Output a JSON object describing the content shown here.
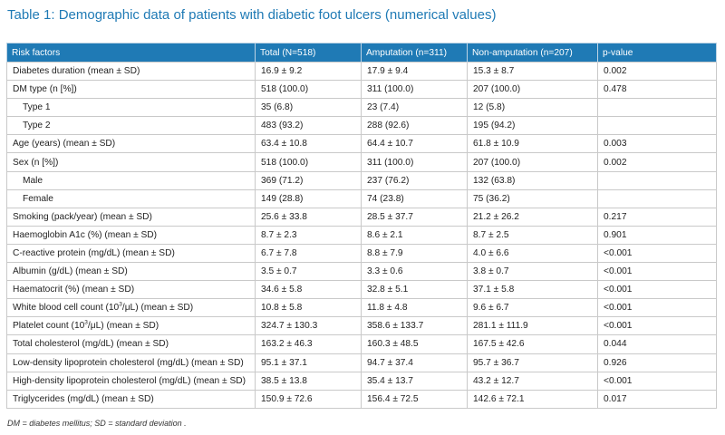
{
  "title": "Table 1: Demographic data of patients with diabetic foot ulcers (numerical values)",
  "columns": [
    "Risk factors",
    "Total (N=518)",
    "Amputation (n=311)",
    "Non-amputation (n=207)",
    "p-value"
  ],
  "rows": [
    {
      "label": "Diabetes duration (mean ± SD)",
      "indent": false,
      "total": "16.9 ± 9.2",
      "amputation": "17.9 ± 9.4",
      "non_amputation": "15.3 ± 8.7",
      "p_value": "0.002"
    },
    {
      "label": "DM type (n [%])",
      "indent": false,
      "total": "518 (100.0)",
      "amputation": "311 (100.0)",
      "non_amputation": "207 (100.0)",
      "p_value": "0.478"
    },
    {
      "label": "Type 1",
      "indent": true,
      "total": "35 (6.8)",
      "amputation": "23 (7.4)",
      "non_amputation": "12 (5.8)",
      "p_value": ""
    },
    {
      "label": "Type 2",
      "indent": true,
      "total": "483 (93.2)",
      "amputation": "288 (92.6)",
      "non_amputation": "195 (94.2)",
      "p_value": ""
    },
    {
      "label": "Age (years) (mean ± SD)",
      "indent": false,
      "total": "63.4 ± 10.8",
      "amputation": "64.4 ± 10.7",
      "non_amputation": "61.8 ± 10.9",
      "p_value": "0.003"
    },
    {
      "label": "Sex (n [%])",
      "indent": false,
      "total": "518 (100.0)",
      "amputation": "311 (100.0)",
      "non_amputation": "207 (100.0)",
      "p_value": "0.002"
    },
    {
      "label": "Male",
      "indent": true,
      "total": "369 (71.2)",
      "amputation": "237 (76.2)",
      "non_amputation": "132 (63.8)",
      "p_value": ""
    },
    {
      "label": "Female",
      "indent": true,
      "total": "149 (28.8)",
      "amputation": "74 (23.8)",
      "non_amputation": "75 (36.2)",
      "p_value": ""
    },
    {
      "label": "Smoking (pack/year) (mean ± SD)",
      "indent": false,
      "total": "25.6 ± 33.8",
      "amputation": "28.5 ± 37.7",
      "non_amputation": "21.2 ± 26.2",
      "p_value": "0.217"
    },
    {
      "label": "Haemoglobin A1c (%) (mean ± SD)",
      "indent": false,
      "total": "8.7 ± 2.3",
      "amputation": "8.6 ± 2.1",
      "non_amputation": "8.7 ± 2.5",
      "p_value": "0.901"
    },
    {
      "label": "C-reactive protein (mg/dL) (mean ± SD)",
      "indent": false,
      "total": "6.7 ± 7.8",
      "amputation": "8.8 ± 7.9",
      "non_amputation": "4.0 ± 6.6",
      "p_value": "<0.001"
    },
    {
      "label": "Albumin (g/dL) (mean ± SD)",
      "indent": false,
      "total": "3.5 ± 0.7",
      "amputation": "3.3 ± 0.6",
      "non_amputation": "3.8 ± 0.7",
      "p_value": "<0.001"
    },
    {
      "label": "Haematocrit (%) (mean ± SD)",
      "indent": false,
      "total": "34.6 ± 5.8",
      "amputation": "32.8 ± 5.1",
      "non_amputation": "37.1 ± 5.8",
      "p_value": "<0.001"
    },
    {
      "label_pre": "White blood cell count (10",
      "label_sup": "3",
      "label_post": "/μL) (mean ± SD)",
      "indent": false,
      "total": "10.8 ± 5.8",
      "amputation": "11.8 ± 4.8",
      "non_amputation": "9.6 ± 6.7",
      "p_value": "<0.001"
    },
    {
      "label_pre": "Platelet count (10",
      "label_sup": "3",
      "label_post": "/μL) (mean ± SD)",
      "indent": false,
      "total": "324.7 ± 130.3",
      "amputation": "358.6 ± 133.7",
      "non_amputation": "281.1 ± 111.9",
      "p_value": "<0.001"
    },
    {
      "label": "Total cholesterol (mg/dL) (mean ± SD)",
      "indent": false,
      "total": "163.2 ± 46.3",
      "amputation": "160.3 ± 48.5",
      "non_amputation": "167.5 ± 42.6",
      "p_value": "0.044"
    },
    {
      "label": "Low-density lipoprotein cholesterol (mg/dL) (mean ± SD)",
      "indent": false,
      "total": "95.1 ± 37.1",
      "amputation": "94.7 ± 37.4",
      "non_amputation": "95.7 ± 36.7",
      "p_value": "0.926"
    },
    {
      "label": "High-density lipoprotein cholesterol (mg/dL) (mean ± SD)",
      "indent": false,
      "total": "38.5 ± 13.8",
      "amputation": "35.4 ± 13.7",
      "non_amputation": "43.2 ± 12.7",
      "p_value": "<0.001"
    },
    {
      "label": "Triglycerides (mg/dL) (mean ± SD)",
      "indent": false,
      "total": "150.9 ± 72.6",
      "amputation": "156.4 ± 72.5",
      "non_amputation": "142.6 ± 72.1",
      "p_value": "0.017"
    }
  ],
  "footnote": "DM = diabetes mellitus; SD = standard deviation .",
  "colors": {
    "title": "#1f7ab5",
    "header_bg": "#1f7ab5",
    "header_text": "#ffffff",
    "border": "#c9c9c9"
  }
}
